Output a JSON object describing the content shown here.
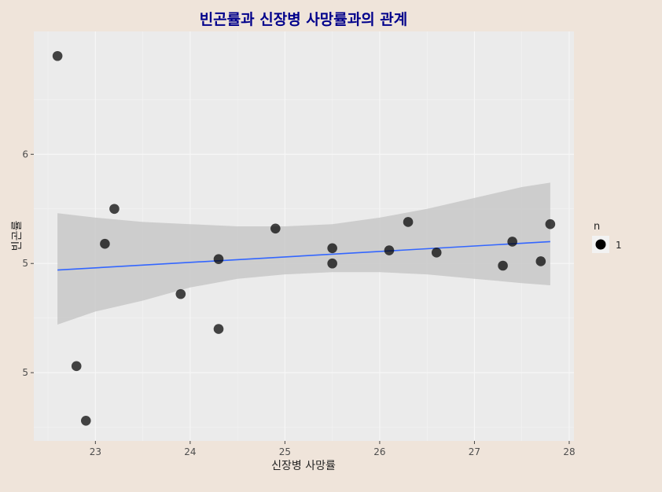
{
  "chart_data": {
    "type": "scatter",
    "title": "빈곤률과 신장병 사망률과의 관계",
    "xlabel": "신장병 사망률",
    "ylabel": "빈곤률",
    "xlim": [
      22.35,
      28.05
    ],
    "ylim": [
      4.4375,
      6.3125
    ],
    "x_ticks": [
      23,
      24,
      25,
      26,
      27,
      28
    ],
    "x_tick_labels": [
      "23",
      "24",
      "25",
      "26",
      "27",
      "28"
    ],
    "y_ticks": [
      4.75,
      5.25,
      5.75
    ],
    "y_tick_labels": [
      "5",
      "5",
      "6"
    ],
    "points": [
      {
        "x": 22.6,
        "y": 6.2
      },
      {
        "x": 22.8,
        "y": 4.78
      },
      {
        "x": 22.9,
        "y": 4.53
      },
      {
        "x": 23.1,
        "y": 5.34
      },
      {
        "x": 23.2,
        "y": 5.5
      },
      {
        "x": 23.9,
        "y": 5.11
      },
      {
        "x": 24.3,
        "y": 5.27
      },
      {
        "x": 24.3,
        "y": 4.95
      },
      {
        "x": 24.9,
        "y": 5.41
      },
      {
        "x": 25.5,
        "y": 5.32
      },
      {
        "x": 25.5,
        "y": 5.25
      },
      {
        "x": 26.1,
        "y": 5.31
      },
      {
        "x": 26.3,
        "y": 5.44
      },
      {
        "x": 26.6,
        "y": 5.3
      },
      {
        "x": 27.3,
        "y": 5.24
      },
      {
        "x": 27.4,
        "y": 5.35
      },
      {
        "x": 27.7,
        "y": 5.26
      },
      {
        "x": 27.8,
        "y": 5.43
      }
    ],
    "fit_line": {
      "x": [
        22.6,
        27.8
      ],
      "y": [
        5.22,
        5.35
      ],
      "color": "#3366ff"
    },
    "confidence_band": {
      "x": [
        22.6,
        23.0,
        23.5,
        24.0,
        24.5,
        25.0,
        25.5,
        26.0,
        26.5,
        27.0,
        27.5,
        27.8
      ],
      "upper": [
        5.48,
        5.46,
        5.44,
        5.43,
        5.42,
        5.42,
        5.43,
        5.46,
        5.5,
        5.55,
        5.6,
        5.62
      ],
      "lower": [
        4.97,
        5.03,
        5.08,
        5.14,
        5.18,
        5.2,
        5.21,
        5.21,
        5.2,
        5.18,
        5.16,
        5.15
      ],
      "color": "#c8c8c8"
    },
    "grid": true,
    "panel_background": "#ebebeb",
    "point_color": "#000000",
    "point_opacity_overplot": true,
    "title_color": "#00008b",
    "legend": {
      "title": "n",
      "position": "right",
      "entries": [
        "1"
      ]
    }
  }
}
